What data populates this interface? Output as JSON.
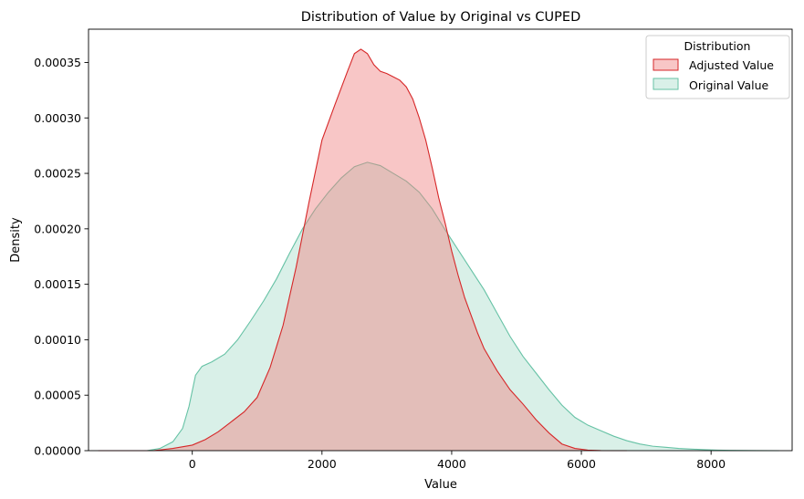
{
  "chart_data": {
    "type": "area",
    "title": "Distribution of Value by Original vs CUPED",
    "xlabel": "Value",
    "ylabel": "Density",
    "xlim": [
      -1600,
      9250
    ],
    "ylim": [
      0,
      0.00038
    ],
    "x_ticks": [
      0,
      2000,
      4000,
      6000,
      8000
    ],
    "x_tick_labels": [
      "0",
      "2000",
      "4000",
      "6000",
      "8000"
    ],
    "y_ticks": [
      0,
      5e-05,
      0.0001,
      0.00015,
      0.0002,
      0.00025,
      0.0003,
      0.00035
    ],
    "y_tick_labels": [
      "0.00000",
      "0.00005",
      "0.00010",
      "0.00015",
      "0.00020",
      "0.00025",
      "0.00030",
      "0.00035"
    ],
    "grid": false,
    "legend": {
      "title": "Distribution",
      "placement": "top-right",
      "entries": [
        "Adjusted Value",
        "Original Value"
      ]
    },
    "series": [
      {
        "name": "Original Value",
        "line_color": "#66c2a5",
        "fill_color": "#66c2a5",
        "fill_opacity": 0.25,
        "x": [
          -700,
          -500,
          -300,
          -150,
          -50,
          50,
          150,
          300,
          500,
          700,
          900,
          1100,
          1300,
          1500,
          1700,
          1900,
          2100,
          2300,
          2500,
          2700,
          2900,
          3100,
          3300,
          3500,
          3700,
          3900,
          4100,
          4300,
          4500,
          4700,
          4900,
          5100,
          5300,
          5500,
          5700,
          5900,
          6100,
          6300,
          6500,
          6700,
          6900,
          7100,
          7300,
          7500,
          7700,
          7900,
          8100,
          8300,
          8500,
          8700,
          9050
        ],
        "y": [
          0.0,
          2e-06,
          8e-06,
          2e-05,
          4e-05,
          6.8e-05,
          7.6e-05,
          8e-05,
          8.7e-05,
          0.0001,
          0.000117,
          0.000135,
          0.000155,
          0.000178,
          0.0002,
          0.000218,
          0.000233,
          0.000246,
          0.000256,
          0.00026,
          0.000257,
          0.00025,
          0.000243,
          0.000233,
          0.000218,
          0.000199,
          0.000181,
          0.000163,
          0.000145,
          0.000124,
          0.000103,
          8.5e-05,
          7e-05,
          5.5e-05,
          4.1e-05,
          3e-05,
          2.3e-05,
          1.8e-05,
          1.3e-05,
          9e-06,
          6e-06,
          4e-06,
          3e-06,
          2e-06,
          1.4e-06,
          9e-07,
          5e-07,
          3e-07,
          2e-07,
          1e-07,
          0.0
        ]
      },
      {
        "name": "Adjusted Value",
        "line_color": "#d62728",
        "fill_color": "#f08080",
        "fill_opacity": 0.45,
        "x": [
          -1450,
          -1000,
          -600,
          -300,
          0,
          200,
          400,
          600,
          800,
          1000,
          1200,
          1400,
          1600,
          1800,
          2000,
          2200,
          2400,
          2500,
          2600,
          2700,
          2800,
          2900,
          3000,
          3100,
          3200,
          3300,
          3400,
          3500,
          3600,
          3700,
          3800,
          3900,
          4000,
          4100,
          4200,
          4300,
          4400,
          4500,
          4700,
          4900,
          5100,
          5300,
          5500,
          5700,
          5900,
          6100,
          6300,
          6500,
          6700
        ],
        "y": [
          0.0,
          0.0,
          0.0,
          2e-06,
          5e-06,
          1e-05,
          1.7e-05,
          2.6e-05,
          3.5e-05,
          4.8e-05,
          7.5e-05,
          0.000113,
          0.000165,
          0.000224,
          0.00028,
          0.000312,
          0.000343,
          0.000358,
          0.000362,
          0.000358,
          0.000348,
          0.000342,
          0.00034,
          0.000337,
          0.000334,
          0.000328,
          0.000317,
          0.0003,
          0.00028,
          0.000255,
          0.000228,
          0.000205,
          0.00018,
          0.000158,
          0.000138,
          0.000122,
          0.000106,
          9.2e-05,
          7.2e-05,
          5.5e-05,
          4.2e-05,
          2.8e-05,
          1.6e-05,
          6e-06,
          2e-06,
          5e-07,
          1e-07,
          0.0,
          0.0
        ]
      }
    ]
  }
}
